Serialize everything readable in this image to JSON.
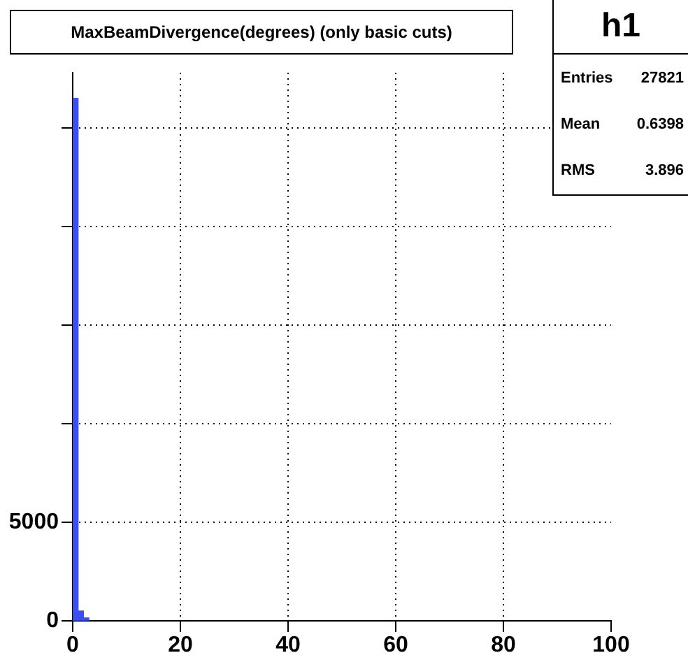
{
  "chart_data": {
    "type": "histogram",
    "title": "MaxBeamDivergence(degrees) (only basic cuts)",
    "bins": [
      0,
      1,
      2,
      3
    ],
    "values": [
      26500,
      500,
      150
    ],
    "color": "#3c4ff0",
    "xlim": [
      0,
      100
    ],
    "xticks": [
      0,
      20,
      40,
      60,
      80,
      100
    ],
    "ylim": [
      0,
      27800
    ],
    "yticks": [
      0,
      5000,
      {
        "value": 10000,
        "label": null
      },
      {
        "value": 15000,
        "label": null
      },
      {
        "value": 20000,
        "label": null
      },
      {
        "value": 25000,
        "label": null
      }
    ],
    "grid": true,
    "legend": false,
    "annotations": [
      "h1",
      "Entries",
      "27821",
      "Mean",
      "0.6398",
      "RMS",
      "3.896"
    ]
  }
}
